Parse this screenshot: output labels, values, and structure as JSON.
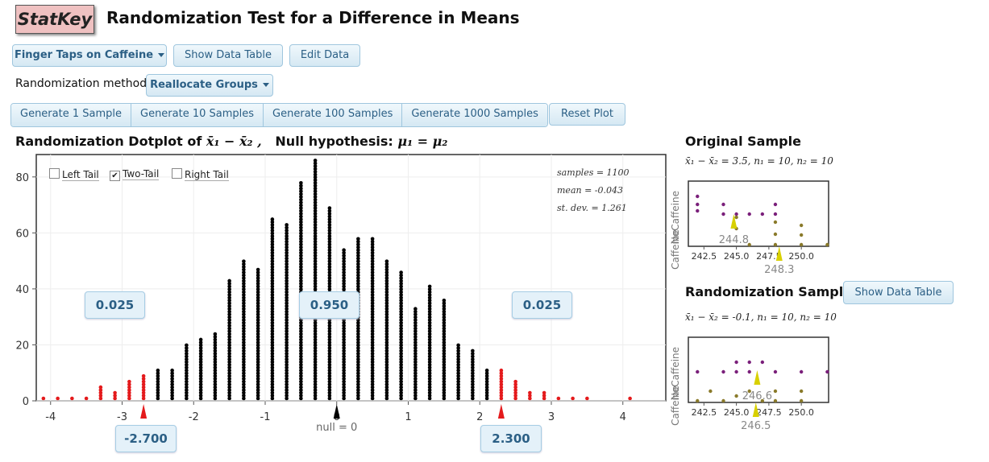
{
  "app": {
    "logo": "StatKey",
    "title": "Randomization Test for a Difference in Means"
  },
  "controls": {
    "dataset_label": "Finger Taps on Caffeine",
    "show_data_table": "Show Data Table",
    "edit_data": "Edit Data",
    "method_label": "Randomization method",
    "method_value": "Reallocate Groups",
    "gen1": "Generate 1 Sample",
    "gen10": "Generate 10 Samples",
    "gen100": "Generate 100 Samples",
    "gen1000": "Generate 1000 Samples",
    "reset": "Reset Plot"
  },
  "dotplot": {
    "title_prefix": "Randomization Dotplot of",
    "stat_symbol": "x̄₁ − x̄₂ ,",
    "null_label": "Null hypothesis:",
    "null_expr": "μ₁ = μ₂",
    "left_tail": "Left Tail",
    "two_tail": "Two-Tail",
    "right_tail": "Right Tail",
    "samples": "samples = 1100",
    "mean": "mean = -0.043",
    "sd": "st. dev. = 1.261",
    "prop_left": "0.025",
    "prop_mid": "0.950",
    "prop_right": "0.025",
    "cut_left": "-2.700",
    "cut_right": "2.300",
    "null_tick": "null = 0"
  },
  "original": {
    "title": "Original Sample",
    "stat": "x̄₁ − x̄₂ = 3.5, n₁ = 10, n₂ = 10",
    "mean_top": "244.8",
    "mean_bottom": "248.3"
  },
  "randomization": {
    "title": "Randomization Sample",
    "show_data_table": "Show Data Table",
    "stat": "x̄₁ − x̄₂ = -0.1, n₁ = 10, n₂ = 10",
    "mean_top": "246.6",
    "mean_bottom": "246.5"
  },
  "mini_axis": {
    "group_top": "NoCaffeine",
    "group_bottom": "Caffeine",
    "ticks": [
      "242.5",
      "245.0",
      "247.5",
      "250.0"
    ]
  },
  "colors": {
    "black_dot": "#000000",
    "red_dot": "#e41a1c",
    "purple": "#7a1f7a",
    "olive": "#8a7a2a",
    "yellow": "#d8d000",
    "button_text": "#2b5f85"
  },
  "chart_data": {
    "type": "scatter",
    "title": "Randomization Dotplot of x̄₁ − x̄₂ , Null hypothesis: μ₁ = μ₂",
    "xlabel": "",
    "ylabel": "",
    "xlim": [
      -4.2,
      4.6
    ],
    "ylim": [
      0,
      88
    ],
    "x_ticks": [
      "-4",
      "-3",
      "-2",
      "-1",
      "0",
      "1",
      "2",
      "3",
      "4"
    ],
    "y_ticks": [
      "0",
      "20",
      "40",
      "60",
      "80"
    ],
    "null_value": 0,
    "left_cutoff": -2.7,
    "right_cutoff": 2.3,
    "x": [
      -4.1,
      -3.9,
      -3.7,
      -3.5,
      -3.3,
      -3.1,
      -2.9,
      -2.7,
      -2.5,
      -2.3,
      -2.1,
      -1.9,
      -1.7,
      -1.5,
      -1.3,
      -1.1,
      -0.9,
      -0.7,
      -0.5,
      -0.3,
      -0.1,
      0.1,
      0.3,
      0.5,
      0.7,
      0.9,
      1.1,
      1.3,
      1.5,
      1.7,
      1.9,
      2.1,
      2.3,
      2.5,
      2.7,
      2.9,
      3.1,
      3.3,
      3.5,
      4.1
    ],
    "counts": [
      1,
      1,
      1,
      1,
      5,
      3,
      7,
      9,
      11,
      11,
      20,
      22,
      24,
      43,
      50,
      47,
      65,
      63,
      78,
      86,
      69,
      54,
      58,
      58,
      50,
      46,
      33,
      41,
      36,
      20,
      18,
      11,
      11,
      7,
      3,
      3,
      1,
      1,
      1,
      1
    ]
  }
}
